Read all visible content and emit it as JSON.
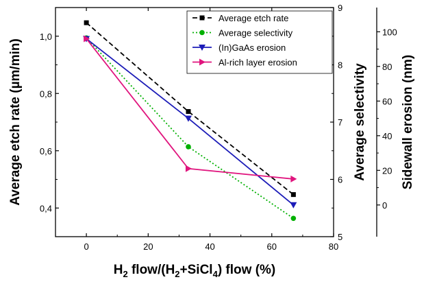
{
  "chart_data": {
    "type": "line",
    "xlabel": {
      "pre": "H",
      "sub1": "2",
      "mid": " flow/(H",
      "sub2": "2",
      "mid2": "+SiCl",
      "sub3": "4",
      "post": ") flow (%)"
    },
    "ylabel_left": "Average etch rate (µm/min)",
    "ylabel_right1": "Average selectivity",
    "ylabel_right2": "Sidewall erosion (nm)",
    "xlim": [
      -10,
      80
    ],
    "ylim_left": [
      0.3,
      1.1
    ],
    "ylim_right1": [
      5,
      9
    ],
    "ylim_right2": [
      -18.3,
      114
    ],
    "x_ticks": [
      "0",
      "20",
      "40",
      "60",
      "80"
    ],
    "y_left_ticks": [
      "0,4",
      "0,6",
      "0,8",
      "1,0"
    ],
    "y_right1_ticks": [
      "5",
      "6",
      "7",
      "8",
      "9"
    ],
    "y_right2_ticks": [
      "0",
      "20",
      "40",
      "60",
      "80",
      "100"
    ],
    "series": [
      {
        "name": "Average etch rate",
        "axis": "left",
        "color": "#000000",
        "dash": "dashed",
        "marker": "square",
        "x": [
          0,
          33,
          67
        ],
        "y": [
          1.047,
          0.737,
          0.447
        ]
      },
      {
        "name": "Average selectivity",
        "axis": "right1",
        "color": "#00b000",
        "dash": "dotted",
        "marker": "circle",
        "x": [
          0,
          33,
          67
        ],
        "y": [
          8.47,
          6.57,
          5.32
        ]
      },
      {
        "name": "(In)GaAs erosion",
        "axis": "right2",
        "color": "#1c1cb8",
        "dash": "solid",
        "marker": "triangle-down",
        "x": [
          0,
          33,
          67
        ],
        "y": [
          96,
          50,
          0
        ]
      },
      {
        "name": "Al-rich layer erosion",
        "axis": "right2",
        "color": "#e0157e",
        "dash": "solid",
        "marker": "triangle-right",
        "x": [
          0,
          33,
          67
        ],
        "y": [
          96,
          21,
          15
        ]
      }
    ],
    "legend_position": "top-right"
  }
}
